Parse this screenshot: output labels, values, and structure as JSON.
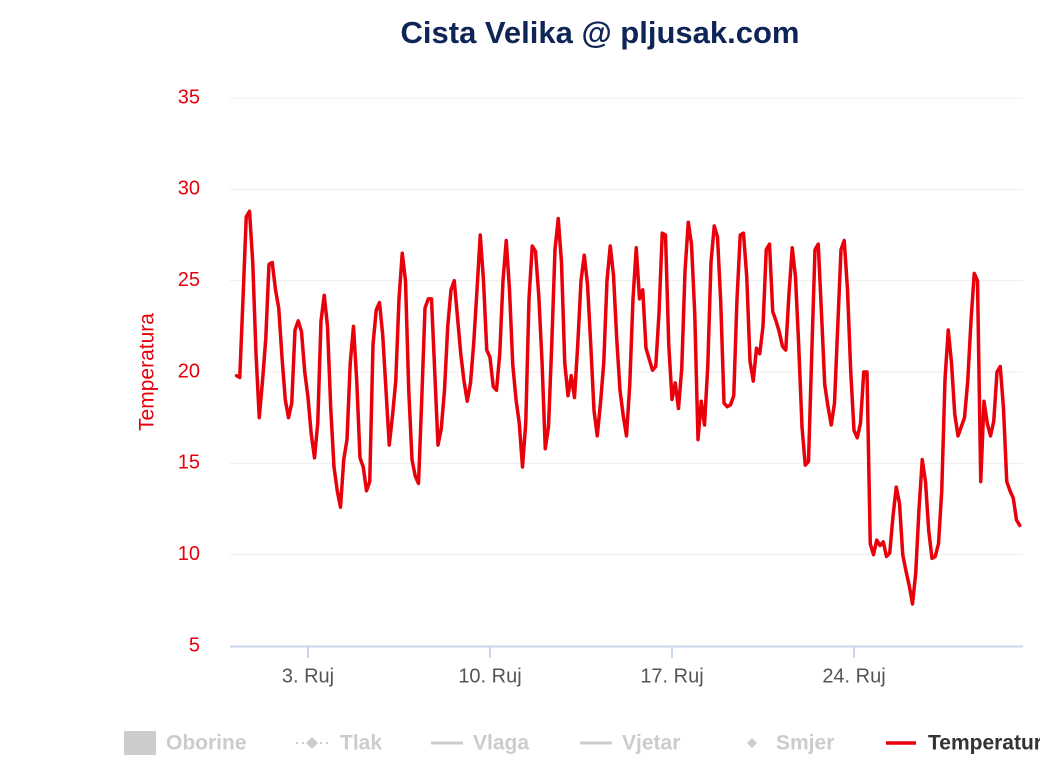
{
  "chart_data": {
    "type": "line",
    "title": "Cista Velika @ pljusak.com",
    "y_label": "Temperatura",
    "xlim": [
      0,
      30.5
    ],
    "xticks": [
      {
        "value": 3,
        "label": "3. Ruj"
      },
      {
        "value": 10,
        "label": "10. Ruj"
      },
      {
        "value": 17,
        "label": "17. Ruj"
      },
      {
        "value": 24,
        "label": "24. Ruj"
      }
    ],
    "ylim": [
      5,
      35
    ],
    "yticks": [
      5,
      10,
      15,
      20,
      25,
      30,
      35
    ],
    "grid": true,
    "legend": "bottom",
    "x": [
      0.25,
      0.375,
      0.5,
      0.625,
      0.75,
      0.875,
      1,
      1.125,
      1.25,
      1.375,
      1.5,
      1.625,
      1.75,
      1.875,
      2,
      2.125,
      2.25,
      2.375,
      2.5,
      2.625,
      2.75,
      2.875,
      3,
      3.125,
      3.25,
      3.375,
      3.5,
      3.625,
      3.75,
      3.875,
      4,
      4.125,
      4.25,
      4.375,
      4.5,
      4.625,
      4.75,
      4.875,
      5,
      5.125,
      5.25,
      5.375,
      5.5,
      5.625,
      5.75,
      5.875,
      6,
      6.125,
      6.25,
      6.375,
      6.5,
      6.625,
      6.75,
      6.875,
      7,
      7.125,
      7.25,
      7.375,
      7.5,
      7.625,
      7.75,
      7.875,
      8,
      8.125,
      8.25,
      8.375,
      8.5,
      8.625,
      8.75,
      8.875,
      9,
      9.125,
      9.25,
      9.375,
      9.5,
      9.625,
      9.75,
      9.875,
      10,
      10.125,
      10.25,
      10.375,
      10.5,
      10.625,
      10.75,
      10.875,
      11,
      11.125,
      11.25,
      11.375,
      11.5,
      11.625,
      11.75,
      11.875,
      12,
      12.125,
      12.25,
      12.375,
      12.5,
      12.625,
      12.75,
      12.875,
      13,
      13.125,
      13.25,
      13.375,
      13.5,
      13.625,
      13.75,
      13.875,
      14,
      14.125,
      14.25,
      14.375,
      14.5,
      14.625,
      14.75,
      14.875,
      15,
      15.125,
      15.25,
      15.375,
      15.5,
      15.625,
      15.75,
      15.875,
      16,
      16.125,
      16.25,
      16.375,
      16.5,
      16.625,
      16.75,
      16.875,
      17,
      17.125,
      17.25,
      17.375,
      17.5,
      17.625,
      17.75,
      17.875,
      18,
      18.125,
      18.25,
      18.375,
      18.5,
      18.625,
      18.75,
      18.875,
      19,
      19.125,
      19.25,
      19.375,
      19.5,
      19.625,
      19.75,
      19.875,
      20,
      20.125,
      20.25,
      20.375,
      20.5,
      20.625,
      20.75,
      20.875,
      21,
      21.125,
      21.25,
      21.375,
      21.5,
      21.625,
      21.75,
      21.875,
      22,
      22.125,
      22.25,
      22.375,
      22.5,
      22.625,
      22.75,
      22.875,
      23,
      23.125,
      23.25,
      23.375,
      23.5,
      23.625,
      23.75,
      23.875,
      24,
      24.125,
      24.25,
      24.375,
      24.5,
      24.625,
      24.75,
      24.875,
      25,
      25.125,
      25.25,
      25.375,
      25.5,
      25.625,
      25.75,
      25.875,
      26,
      26.125,
      26.25,
      26.375,
      26.5,
      26.625,
      26.75,
      26.875,
      27,
      27.125,
      27.25,
      27.375,
      27.5,
      27.625,
      27.75,
      27.875,
      28,
      28.125,
      28.25,
      28.375,
      28.5,
      28.625,
      28.75,
      28.875,
      29,
      29.125,
      29.25,
      29.375,
      29.5,
      29.625,
      29.75,
      29.875,
      30,
      30.125,
      30.25,
      30.375
    ],
    "series": [
      {
        "name": "Oborine",
        "visible": false
      },
      {
        "name": "Tlak",
        "visible": false
      },
      {
        "name": "Vlaga",
        "visible": false
      },
      {
        "name": "Vjetar",
        "visible": false
      },
      {
        "name": "Smjer",
        "visible": false
      },
      {
        "name": "Temperatura",
        "visible": true,
        "color": "#e8000b",
        "values": [
          19.8,
          19.7,
          24,
          28.5,
          28.8,
          26,
          21,
          17.5,
          19.5,
          21.8,
          25.9,
          26,
          24.5,
          23.5,
          20.8,
          18.5,
          17.5,
          18.3,
          22.3,
          22.8,
          22.2,
          20,
          18.6,
          16.6,
          15.3,
          17.2,
          22.8,
          24.2,
          22.5,
          18,
          14.8,
          13.5,
          12.6,
          15.2,
          16.3,
          20.5,
          22.5,
          19.5,
          15.3,
          14.8,
          13.5,
          14,
          21.5,
          23.4,
          23.8,
          22,
          19,
          16,
          17.6,
          19.5,
          24,
          26.5,
          25,
          19,
          15.2,
          14.3,
          13.9,
          18.5,
          23.5,
          24,
          24,
          20,
          16,
          16.9,
          19,
          22.5,
          24.5,
          25,
          23,
          21,
          19.5,
          18.4,
          19.4,
          21.6,
          24.5,
          27.5,
          25,
          21.2,
          20.8,
          19.2,
          19,
          21,
          25,
          27.2,
          24.5,
          20.4,
          18.5,
          17.2,
          14.8,
          17.2,
          24,
          26.9,
          26.6,
          24.2,
          20.6,
          15.8,
          17,
          21.5,
          26.7,
          28.4,
          26,
          20.5,
          18.7,
          19.8,
          18.6,
          21.5,
          25,
          26.4,
          24.8,
          21.5,
          17.9,
          16.5,
          18.3,
          20.5,
          25,
          26.9,
          25.3,
          21.8,
          19,
          17.6,
          16.5,
          19.3,
          24,
          26.8,
          24,
          24.5,
          21.3,
          20.7,
          20.1,
          20.3,
          23.2,
          27.6,
          27.5,
          21.5,
          18.5,
          19.4,
          18,
          20.2,
          25.5,
          28.2,
          27,
          23.2,
          16.3,
          18.4,
          17.1,
          20.3,
          26,
          28,
          27.4,
          23.8,
          18.3,
          18.1,
          18.2,
          18.7,
          24,
          27.5,
          27.6,
          25.2,
          20.6,
          19.5,
          21.3,
          21,
          22.5,
          26.7,
          27,
          23.3,
          22.8,
          22.2,
          21.4,
          21.2,
          24.3,
          26.8,
          25.2,
          21.4,
          17,
          14.9,
          15.1,
          21,
          26.7,
          27,
          23.2,
          19.3,
          18.1,
          17.1,
          18.3,
          22.5,
          26.7,
          27.2,
          24.5,
          20,
          16.8,
          16.4,
          17.2,
          20,
          20,
          10.6,
          10,
          10.8,
          10.5,
          10.7,
          9.9,
          10.1,
          12.1,
          13.7,
          12.8,
          10,
          9.1,
          8.3,
          7.3,
          9,
          12.5,
          15.2,
          14,
          11.3,
          9.8,
          9.9,
          10.6,
          13.5,
          19.6,
          22.3,
          20.5,
          17.7,
          16.5,
          17,
          17.5,
          19.5,
          22.8,
          25.4,
          25,
          14,
          18.4,
          17.2,
          16.5,
          17.3,
          20,
          20.3,
          18,
          14,
          13.5,
          13.1,
          11.9,
          11.6
        ]
      }
    ]
  }
}
